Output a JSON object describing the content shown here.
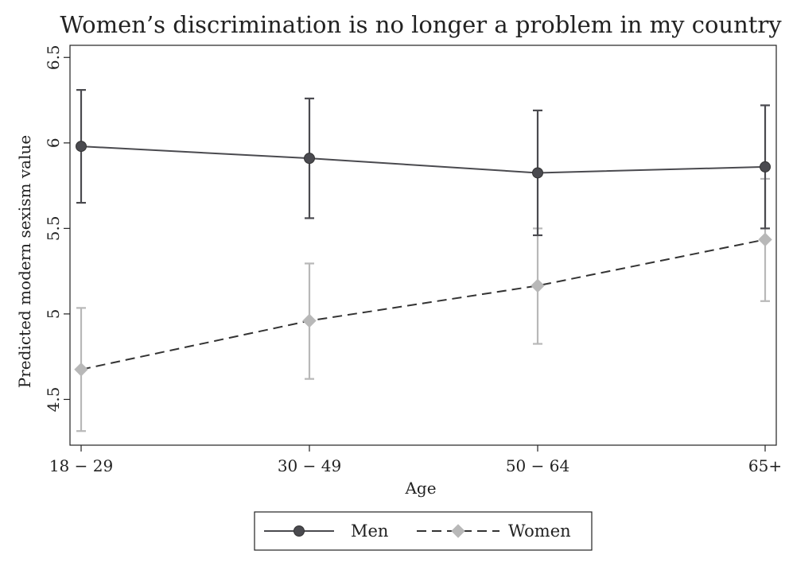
{
  "chart_data": {
    "type": "line",
    "title": "Women’s discrimination is no longer a problem in my country",
    "xlabel": "Age",
    "ylabel": "Predicted modern sexism value",
    "categories": [
      "18 − 29",
      "30 − 49",
      "50 − 64",
      "65+"
    ],
    "ylim": [
      4.25,
      6.5
    ],
    "yticks": [
      4.5,
      5,
      5.5,
      6,
      6.5
    ],
    "ytick_labels": [
      "4.5",
      "5",
      "5.5",
      "6",
      "6.5"
    ],
    "grid": false,
    "legend_position": "bottom",
    "series": [
      {
        "name": "Men",
        "line_style": "solid",
        "marker": "circle",
        "color": "#4a4a4f",
        "values": [
          5.98,
          5.91,
          5.825,
          5.86
        ],
        "ci_low": [
          5.65,
          5.56,
          5.46,
          5.5
        ],
        "ci_high": [
          6.31,
          6.26,
          6.19,
          6.22
        ]
      },
      {
        "name": "Women",
        "line_style": "dashed",
        "marker": "diamond",
        "color": "#b8b8b8",
        "values": [
          4.675,
          4.96,
          5.165,
          5.435
        ],
        "ci_low": [
          4.315,
          4.62,
          4.825,
          5.075
        ],
        "ci_high": [
          5.035,
          5.295,
          5.5,
          5.79
        ]
      }
    ]
  }
}
